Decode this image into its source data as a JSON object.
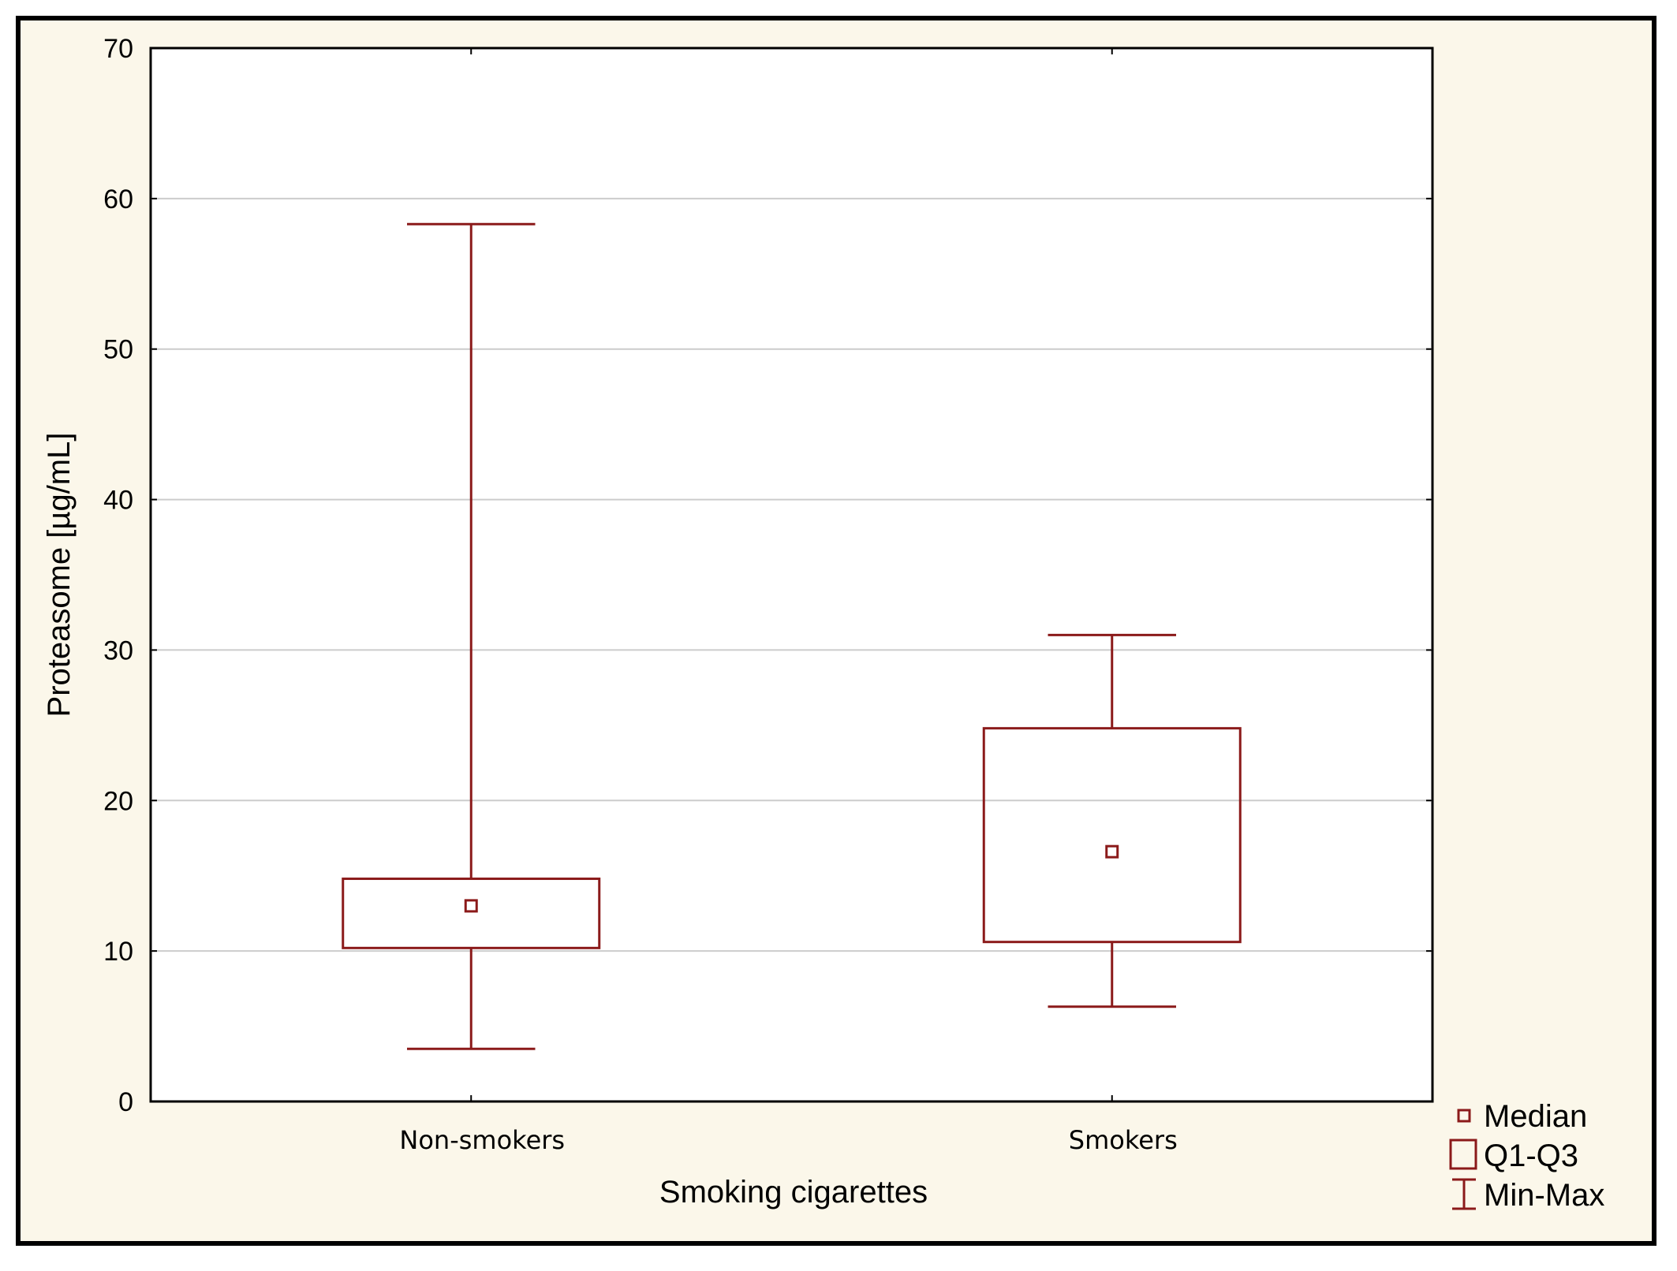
{
  "chart_data": {
    "type": "box",
    "xlabel": "Smoking cigarettes",
    "ylabel": "Proteasome [µg/mL]",
    "ylim": [
      0,
      70
    ],
    "yticks": [
      0,
      10,
      20,
      30,
      40,
      50,
      60,
      70
    ],
    "grid": true,
    "legend_position": "bottom-right",
    "categories": [
      "Non-smokers",
      "Smokers"
    ],
    "boxes": [
      {
        "category": "Non-smokers",
        "min": 3.5,
        "q1": 10.2,
        "median": 13.0,
        "q3": 14.8,
        "max": 58.3
      },
      {
        "category": "Smokers",
        "min": 6.3,
        "q1": 10.6,
        "median": 16.6,
        "q3": 24.8,
        "max": 31.0
      }
    ],
    "legend": [
      {
        "key": "median",
        "label": "Median"
      },
      {
        "key": "box",
        "label": "Q1-Q3"
      },
      {
        "key": "whisker",
        "label": "Min-Max"
      }
    ],
    "colors": {
      "series": "#8B1A1A",
      "grid": "#CCCCCC",
      "frame": "#000000",
      "plot_bg": "#FFFFFF",
      "outer_bg": "#FBF7EA"
    }
  }
}
